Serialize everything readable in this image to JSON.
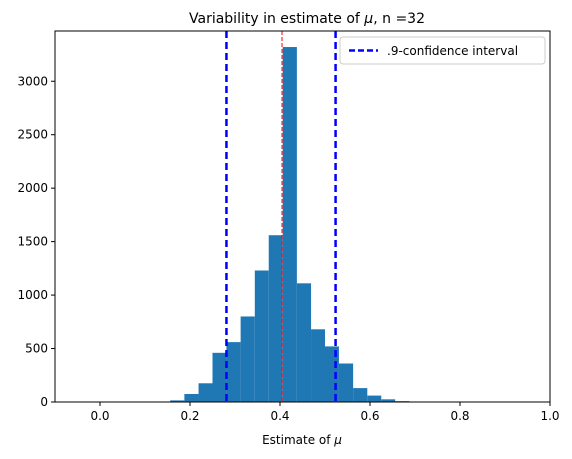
{
  "chart_data": {
    "type": "bar",
    "title_text": "Variability in estimate of ",
    "title_symbol": "μ",
    "title_suffix": ", n =32",
    "xlabel_text": "Estimate of ",
    "xlabel_symbol": "μ",
    "ylabel": "",
    "xlim": [
      -0.1,
      1.0
    ],
    "ylim": [
      0,
      3470
    ],
    "x_ticks": [
      {
        "value": 0.0,
        "label": "0.0"
      },
      {
        "value": 0.2,
        "label": "0.2"
      },
      {
        "value": 0.4,
        "label": "0.4"
      },
      {
        "value": 0.6,
        "label": "0.6"
      },
      {
        "value": 0.8,
        "label": "0.8"
      },
      {
        "value": 1.0,
        "label": "1.0"
      }
    ],
    "y_ticks": [
      {
        "value": 0,
        "label": "0"
      },
      {
        "value": 500,
        "label": "500"
      },
      {
        "value": 1000,
        "label": "1000"
      },
      {
        "value": 1500,
        "label": "1500"
      },
      {
        "value": 2000,
        "label": "2000"
      },
      {
        "value": 2500,
        "label": "2500"
      },
      {
        "value": 3000,
        "label": "3000"
      }
    ],
    "bin_edges": [
      0.125,
      0.156,
      0.1875,
      0.219,
      0.25,
      0.281,
      0.3125,
      0.344,
      0.375,
      0.406,
      0.4375,
      0.469,
      0.5,
      0.531,
      0.5625,
      0.594,
      0.625,
      0.656,
      0.6875,
      0.719
    ],
    "counts": [
      3,
      15,
      75,
      175,
      460,
      560,
      800,
      1230,
      1560,
      3320,
      1110,
      680,
      520,
      360,
      130,
      60,
      25,
      8,
      2
    ],
    "bar_color": "#1f77b4",
    "mean_line": {
      "x": 0.4045,
      "color": "#ff0000",
      "style": "dashed"
    },
    "ci_lines": {
      "lower": 0.281,
      "upper": 0.5235,
      "color": "#0000ff",
      "style": "dashed"
    },
    "legend": {
      "position": "upper-right",
      "label": ".9-confidence interval"
    },
    "grid": false
  }
}
